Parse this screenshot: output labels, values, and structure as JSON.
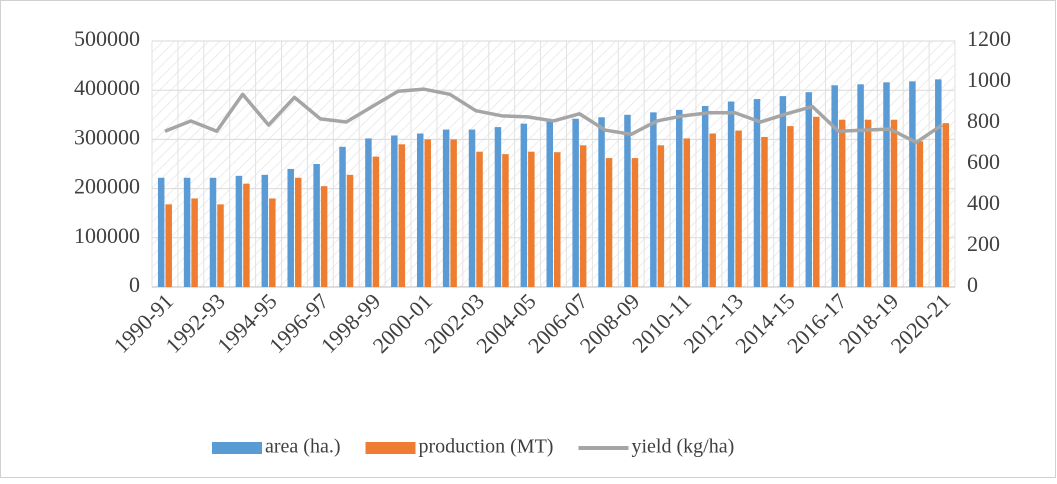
{
  "chart_data": {
    "type": "bar-line",
    "categories": [
      "1990-91",
      null,
      "1992-93",
      null,
      "1994-95",
      null,
      "1996-97",
      null,
      "1998-99",
      null,
      "2000-01",
      null,
      "2002-03",
      null,
      "2004-05",
      null,
      "2006-07",
      null,
      "2008-09",
      null,
      "2010-11",
      null,
      "2012-13",
      null,
      "2014-15",
      null,
      "2016-17",
      null,
      "2018-19",
      null,
      "2020-21"
    ],
    "series": [
      {
        "name": "area (ha.)",
        "color": "#5b9bd5",
        "type": "bar",
        "values": [
          222000,
          222000,
          222000,
          226000,
          228000,
          240000,
          250000,
          285000,
          302000,
          308000,
          312000,
          320000,
          320000,
          325000,
          332000,
          337000,
          342000,
          345000,
          350000,
          355000,
          360000,
          368000,
          377000,
          382000,
          388000,
          396000,
          410000,
          412000,
          416000,
          418000,
          422000
        ]
      },
      {
        "name": "production (MT)",
        "color": "#ed7d31",
        "type": "bar",
        "values": [
          168000,
          180000,
          168000,
          210000,
          180000,
          222000,
          205000,
          228000,
          265000,
          290000,
          300000,
          300000,
          275000,
          270000,
          275000,
          274000,
          288000,
          262000,
          262000,
          288000,
          302000,
          312000,
          318000,
          305000,
          327000,
          346000,
          340000,
          340000,
          340000,
          296000,
          333000
        ]
      },
      {
        "name": "yield (kg/ha)",
        "color": "#a5a5a5",
        "type": "line",
        "axis": "y2",
        "values": [
          760,
          810,
          760,
          940,
          790,
          925,
          820,
          805,
          880,
          955,
          965,
          940,
          860,
          835,
          830,
          810,
          845,
          765,
          745,
          810,
          835,
          850,
          850,
          805,
          845,
          880,
          760,
          765,
          770,
          705,
          790
        ]
      }
    ],
    "ylim": [
      0,
      500000
    ],
    "yticks": [
      0,
      100000,
      200000,
      300000,
      400000,
      500000
    ],
    "y2lim": [
      0,
      1200
    ],
    "y2ticks": [
      0,
      200,
      400,
      600,
      800,
      1000,
      1200
    ],
    "grid": true,
    "legend": "bottom"
  }
}
